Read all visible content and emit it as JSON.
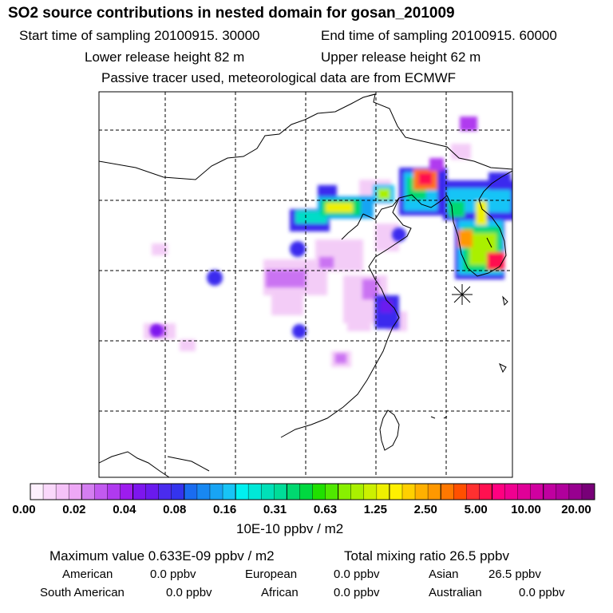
{
  "header": {
    "title": "SO2 source contributions in nested domain for gosan_201009",
    "start_time": "Start time of sampling 20100915. 30000",
    "end_time": "End time of sampling 20100915. 60000",
    "lower_release": "Lower release height   82 m",
    "upper_release": "Upper release height   62 m",
    "tracer_note": "Passive tracer used, meteorological data are from ECMWF"
  },
  "colorbar": {
    "tick_labels": [
      "0.00",
      "0.02",
      "0.04",
      "0.08",
      "0.16",
      "0.31",
      "0.63",
      "1.25",
      "2.50",
      "5.00",
      "10.00",
      "20.00"
    ],
    "units": "10E-10 ppbv / m2",
    "colors": [
      "#fdf0fd",
      "#fad8fb",
      "#f5c2f8",
      "#eea8f6",
      "#d47ef1",
      "#c25af0",
      "#b03aef",
      "#9d1cee",
      "#7d16ee",
      "#6a1aee",
      "#4a2cee",
      "#3434ee",
      "#1a6cf0",
      "#1888f2",
      "#18a4f4",
      "#18c4f6",
      "#00f0f0",
      "#00e8d8",
      "#00e0b8",
      "#00dc98",
      "#00d870",
      "#00d840",
      "#20e000",
      "#50e800",
      "#88f000",
      "#aaf000",
      "#ccf000",
      "#eef000",
      "#fff000",
      "#ffd000",
      "#ffb000",
      "#ff9800",
      "#ff7800",
      "#ff5000",
      "#ff3030",
      "#ff1050",
      "#ff0080",
      "#f00090",
      "#e00098",
      "#d000a0",
      "#c000a0",
      "#b0009c",
      "#980090",
      "#780078"
    ]
  },
  "stats": {
    "max_value": "Maximum value  0.633E-09 ppbv / m2",
    "total_mixing": "Total mixing ratio      26.5 ppbv",
    "american": {
      "label": "American",
      "value": "0.0 ppbv"
    },
    "european": {
      "label": "European",
      "value": "0.0 ppbv"
    },
    "asian": {
      "label": "Asian",
      "value": "26.5 ppbv"
    },
    "south_american": {
      "label": "South American",
      "value": "0.0 ppbv"
    },
    "african": {
      "label": "African",
      "value": "0.0 ppbv"
    },
    "australian": {
      "label": "Australian",
      "value": "0.0 ppbv"
    }
  }
}
